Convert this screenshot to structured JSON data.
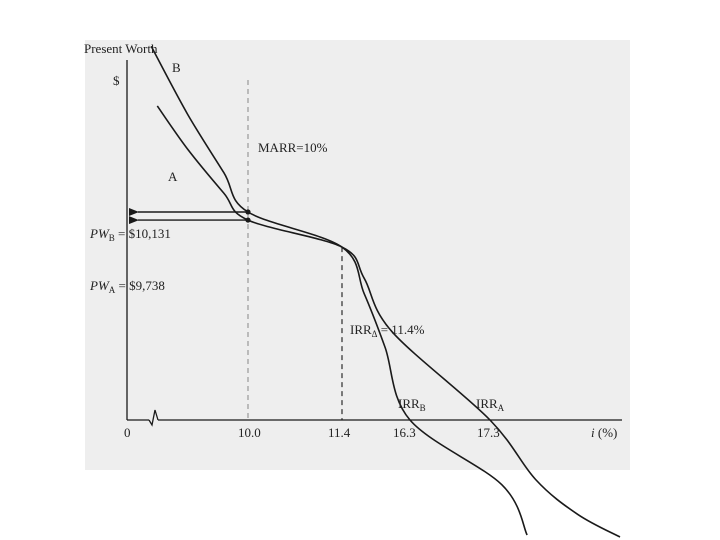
{
  "chart_data": {
    "type": "line",
    "ylabel": "Present Worth",
    "yunit": "$",
    "xlabel": "i (%)",
    "xlabel_var": "i",
    "xlabel_unit": "(%)",
    "origin_label": "0",
    "x_ticks": [
      "10.0",
      "11.4",
      "16.3",
      "17.3"
    ],
    "series": [
      {
        "name": "B",
        "color": "#1a1a1a",
        "x": [
          2.0,
          5.0,
          8.0,
          10.0,
          11.4,
          13.0,
          14.5,
          16.3,
          18.0,
          19.5
        ],
        "y": [
          18200,
          14900,
          12050,
          10131,
          8420,
          6150,
          3550,
          0,
          -3150,
          -5600
        ]
      },
      {
        "name": "A",
        "color": "#1a1a1a",
        "x": [
          2.5,
          5.0,
          8.0,
          10.0,
          11.4,
          13.0,
          15.0,
          17.3,
          20.0,
          22.5,
          25.0
        ],
        "y": [
          15300,
          13200,
          11050,
          9738,
          8420,
          6900,
          4300,
          0,
          -2900,
          -4600,
          -5700
        ]
      }
    ],
    "marr": {
      "label": "MARR=10%",
      "x": 10.0
    },
    "pw_markers": [
      {
        "label_var": "PW",
        "label_sub": "B",
        "label_value": " = $10,131",
        "y": 10131,
        "at_x": 10.0
      },
      {
        "label_var": "PW",
        "label_sub": "A",
        "label_value": " = $9,738",
        "y": 9738,
        "at_x": 10.0
      }
    ],
    "intersection": {
      "label_main": "IRR",
      "label_sub": "Δ",
      "label_value": " = 11.4%",
      "x": 11.4,
      "y": 8420
    },
    "irr_labels": [
      {
        "label_main": "IRR",
        "label_sub": "B",
        "x": 16.3
      },
      {
        "label_main": "IRR",
        "label_sub": "A",
        "x": 17.3
      }
    ],
    "axis_break": true,
    "grid": false,
    "legend": "none"
  }
}
